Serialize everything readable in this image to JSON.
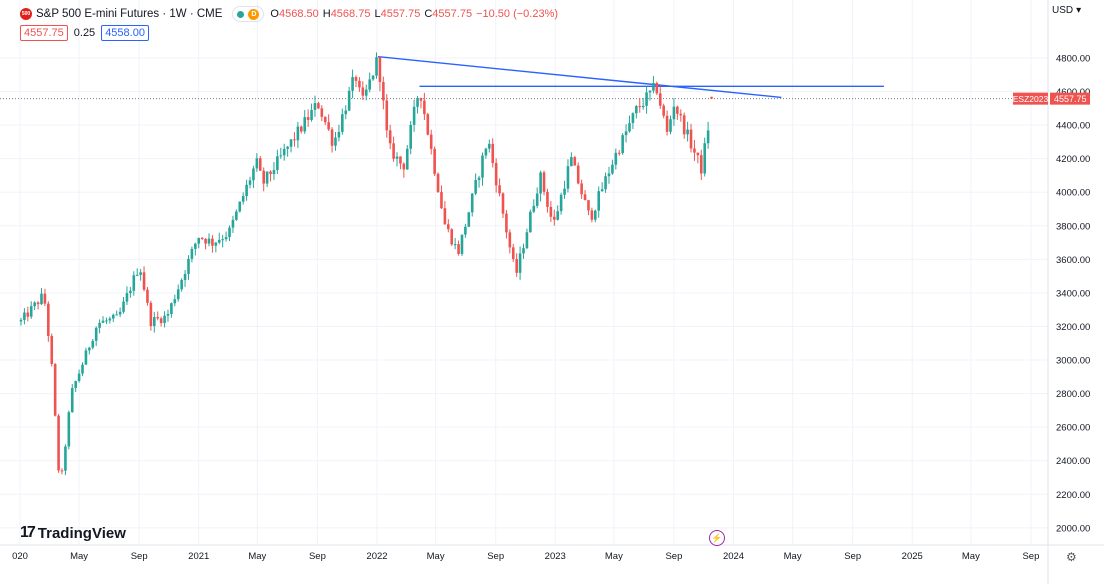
{
  "header": {
    "symbol_badge": "500",
    "title": "S&P 500 E-mini Futures · 1W · CME",
    "d_badge": "D",
    "ohlc": [
      {
        "k": "O",
        "v": "4568.50"
      },
      {
        "k": "H",
        "v": "4568.75"
      },
      {
        "k": "L",
        "v": "4557.75"
      },
      {
        "k": "C",
        "v": "4557.75"
      },
      {
        "k": "",
        "v": "−10.50 (−0.23%)"
      }
    ],
    "bid": "4557.75",
    "spread": "0.25",
    "ask": "4558.00",
    "currency": "USD"
  },
  "watermark": "TradingView",
  "colors": {
    "up": "#26a69a",
    "down": "#ef5350",
    "trendline": "#2962ff",
    "last_price_line": "#787b86",
    "grid": "#f0f3fa"
  },
  "icons": [
    "tradingview-logo-icon",
    "lightning-icon",
    "gear-icon",
    "chevron-down-icon"
  ],
  "chart_data": {
    "type": "candlestick",
    "timeframe": "1W",
    "y_axis": {
      "ylim": [
        1920,
        5060
      ],
      "ticks": [
        "2000.00",
        "2200.00",
        "2400.00",
        "2600.00",
        "2800.00",
        "3000.00",
        "3200.00",
        "3400.00",
        "3600.00",
        "3800.00",
        "4000.00",
        "4200.00",
        "4400.00",
        "4600.00",
        "4800.00"
      ]
    },
    "x_axis": {
      "labels": [
        {
          "t": "020",
          "date": "2020-01-01"
        },
        {
          "t": "May",
          "date": "2020-05-01"
        },
        {
          "t": "Sep",
          "date": "2020-09-01"
        },
        {
          "t": "2021",
          "date": "2021-01-01"
        },
        {
          "t": "May",
          "date": "2021-05-01"
        },
        {
          "t": "Sep",
          "date": "2021-09-01"
        },
        {
          "t": "2022",
          "date": "2022-01-01"
        },
        {
          "t": "May",
          "date": "2022-05-01"
        },
        {
          "t": "Sep",
          "date": "2022-09-01"
        },
        {
          "t": "2023",
          "date": "2023-01-01"
        },
        {
          "t": "May",
          "date": "2023-05-01"
        },
        {
          "t": "Sep",
          "date": "2023-09-01"
        },
        {
          "t": "2024",
          "date": "2024-01-01"
        },
        {
          "t": "May",
          "date": "2024-05-01"
        },
        {
          "t": "Sep",
          "date": "2024-09-01"
        },
        {
          "t": "2025",
          "date": "2025-01-01"
        },
        {
          "t": "May",
          "date": "2025-05-01"
        },
        {
          "t": "Sep",
          "date": "2025-09-01"
        }
      ]
    },
    "closes": [
      {
        "date": "2020-01-03",
        "close": 3230
      },
      {
        "date": "2020-02-19",
        "close": 3390
      },
      {
        "date": "2020-03-05",
        "close": 3000
      },
      {
        "date": "2020-03-23",
        "close": 2220
      },
      {
        "date": "2020-04-15",
        "close": 2800
      },
      {
        "date": "2020-06-08",
        "close": 3220
      },
      {
        "date": "2020-07-20",
        "close": 3250
      },
      {
        "date": "2020-09-02",
        "close": 3570
      },
      {
        "date": "2020-09-24",
        "close": 3230
      },
      {
        "date": "2020-10-28",
        "close": 3260
      },
      {
        "date": "2020-12-31",
        "close": 3740
      },
      {
        "date": "2021-01-29",
        "close": 3700
      },
      {
        "date": "2021-03-04",
        "close": 3760
      },
      {
        "date": "2021-04-29",
        "close": 4180
      },
      {
        "date": "2021-05-12",
        "close": 4050
      },
      {
        "date": "2021-09-02",
        "close": 4530
      },
      {
        "date": "2021-10-04",
        "close": 4290
      },
      {
        "date": "2021-11-18",
        "close": 4700
      },
      {
        "date": "2021-12-01",
        "close": 4520
      },
      {
        "date": "2022-01-03",
        "close": 4800
      },
      {
        "date": "2022-01-24",
        "close": 4270
      },
      {
        "date": "2022-02-24",
        "close": 4150
      },
      {
        "date": "2022-03-29",
        "close": 4630
      },
      {
        "date": "2022-05-20",
        "close": 3810
      },
      {
        "date": "2022-06-16",
        "close": 3640
      },
      {
        "date": "2022-08-16",
        "close": 4320
      },
      {
        "date": "2022-10-12",
        "close": 3500
      },
      {
        "date": "2022-12-01",
        "close": 4100
      },
      {
        "date": "2022-12-28",
        "close": 3800
      },
      {
        "date": "2023-02-02",
        "close": 4200
      },
      {
        "date": "2023-03-13",
        "close": 3840
      },
      {
        "date": "2023-05-01",
        "close": 4200
      },
      {
        "date": "2023-06-16",
        "close": 4490
      },
      {
        "date": "2023-07-27",
        "close": 4630
      },
      {
        "date": "2023-08-18",
        "close": 4350
      },
      {
        "date": "2023-09-01",
        "close": 4530
      },
      {
        "date": "2023-10-27",
        "close": 4140
      },
      {
        "date": "2023-11-20",
        "close": 4560
      }
    ],
    "trendlines": [
      {
        "from": {
          "date": "2022-01-03",
          "price": 4808
        },
        "to": {
          "date": "2024-04-08",
          "price": 4565
        }
      },
      {
        "from": {
          "date": "2022-03-29",
          "price": 4631
        },
        "to": {
          "date": "2024-11-04",
          "price": 4631
        }
      }
    ],
    "last_price": {
      "symbol": "ESZ2023",
      "value": "4557.75"
    }
  }
}
